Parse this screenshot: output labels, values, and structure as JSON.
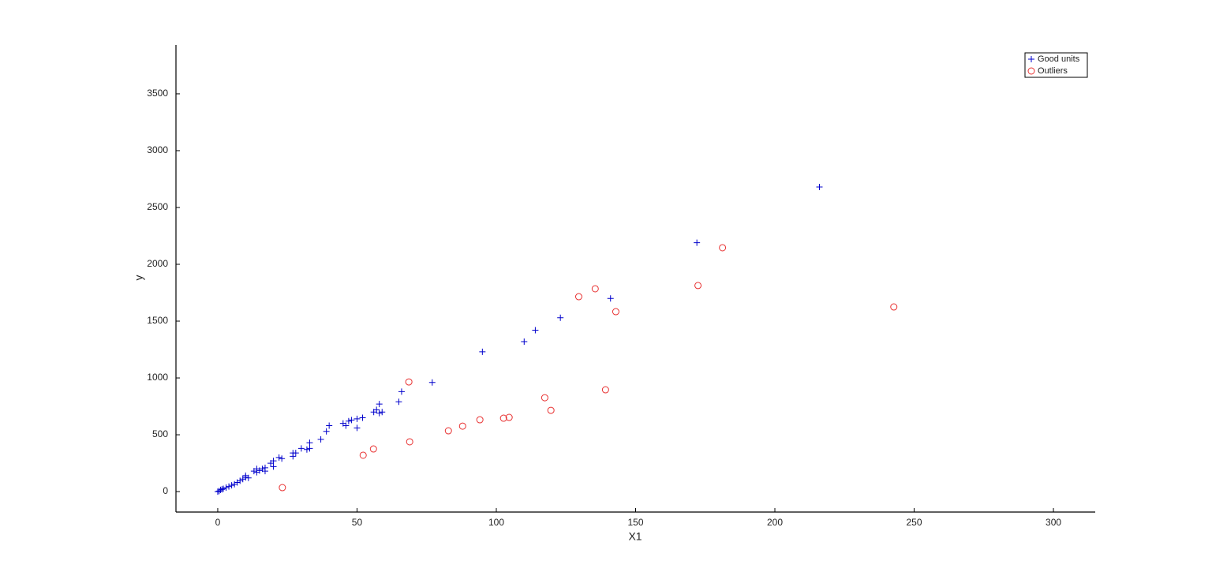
{
  "chart_data": {
    "type": "scatter",
    "x_label": "X1",
    "y_label": "y",
    "xlim": [
      -15,
      315
    ],
    "ylim": [
      -180,
      3930
    ],
    "xticks": [
      0,
      50,
      100,
      150,
      200,
      250,
      300
    ],
    "yticks": [
      0,
      500,
      1000,
      1500,
      2000,
      2500,
      3000,
      3500
    ],
    "grid": false,
    "legend": "upper right",
    "series": [
      {
        "name": "Good units",
        "color": "#0000cc",
        "marker": "plus",
        "x": [
          0,
          0.5,
          1,
          1.5,
          2,
          3,
          4,
          5,
          6,
          7,
          8,
          9,
          10,
          10,
          11,
          13,
          14,
          14,
          15,
          16,
          17,
          17,
          19,
          20,
          20,
          22,
          23,
          27,
          27,
          28,
          30,
          32,
          33,
          33,
          37,
          39,
          40,
          45,
          46,
          47,
          48,
          50,
          50,
          52,
          56,
          57,
          58,
          58,
          59,
          65,
          66,
          77,
          95,
          110,
          114,
          123,
          141,
          172,
          216
        ],
        "values": [
          0,
          5,
          15,
          20,
          25,
          35,
          45,
          55,
          65,
          80,
          95,
          110,
          125,
          140,
          120,
          180,
          200,
          170,
          185,
          200,
          210,
          180,
          250,
          270,
          220,
          300,
          290,
          340,
          310,
          340,
          380,
          370,
          430,
          380,
          460,
          530,
          580,
          600,
          580,
          620,
          630,
          640,
          560,
          650,
          700,
          720,
          770,
          690,
          700,
          790,
          880,
          960,
          1230,
          1320,
          1420,
          1530,
          1700,
          2190,
          2680
        ]
      },
      {
        "name": "Outliers",
        "color": "#e83030",
        "marker": "circle",
        "x": [
          23.2,
          52.2,
          55.9,
          68.6,
          68.9,
          82.8,
          87.9,
          94.1,
          102.6,
          104.6,
          117.4,
          119.6,
          129.6,
          135.5,
          139.2,
          142.9,
          172.4,
          181.2,
          242.7
        ],
        "values": [
          35,
          320,
          375,
          965,
          438,
          535,
          576,
          632,
          646,
          653,
          826,
          715,
          1715,
          1785,
          896,
          1583,
          1813,
          2146,
          1625
        ]
      }
    ]
  }
}
